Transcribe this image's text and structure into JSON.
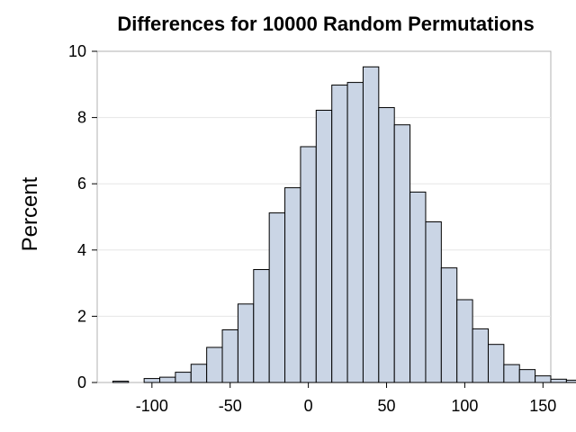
{
  "chart_data": {
    "type": "bar",
    "title": "Differences for 10000 Random Permutations",
    "xlabel": "",
    "ylabel": "Percent",
    "bin_width": 10,
    "bin_start": -125,
    "values": [
      0.04,
      0.0,
      0.12,
      0.16,
      0.31,
      0.55,
      1.06,
      1.59,
      2.37,
      3.41,
      5.12,
      5.88,
      7.12,
      8.22,
      8.98,
      9.06,
      9.53,
      8.3,
      7.78,
      5.75,
      4.85,
      3.46,
      2.5,
      1.62,
      1.15,
      0.54,
      0.39,
      0.2,
      0.1,
      0.07,
      0.03
    ],
    "xlim": [
      -135,
      155
    ],
    "ylim": [
      0,
      10
    ],
    "xticks": [
      -100,
      -50,
      0,
      50,
      100,
      150
    ],
    "yticks": [
      0,
      2,
      4,
      6,
      8,
      10
    ],
    "xtick_labels": [
      "-100",
      "-50",
      "0",
      "50",
      "100",
      "150"
    ],
    "ytick_labels": [
      "0",
      "2",
      "4",
      "6",
      "8",
      "10"
    ],
    "grid": true,
    "bar_color": "#cad5e5",
    "edge_color": "#000000"
  }
}
